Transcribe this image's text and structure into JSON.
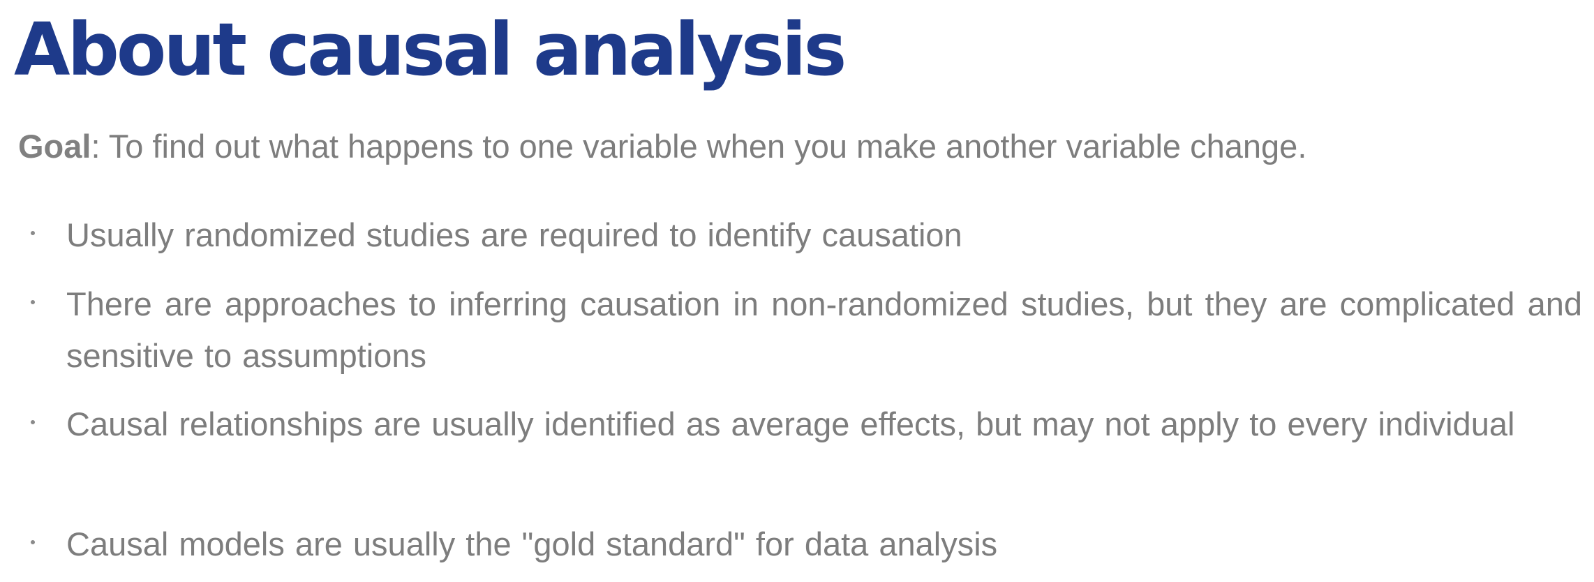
{
  "title": "About causal analysis",
  "goal": {
    "label": "Goal",
    "text": ": To find out what happens to one variable when you make another variable change."
  },
  "bullets": [
    "Usually randomized studies are required to identify causation",
    "There are approaches to inferring causation in non-randomized studies, but they are complicated and sensitive to assumptions",
    "Causal relationships are usually identified as average effects, but may not apply to every individual",
    "Causal models are usually the \"gold standard\" for data analysis"
  ],
  "colors": {
    "title": "#1e3a8a",
    "body_text": "#7d7d7d",
    "background": "#ffffff"
  }
}
